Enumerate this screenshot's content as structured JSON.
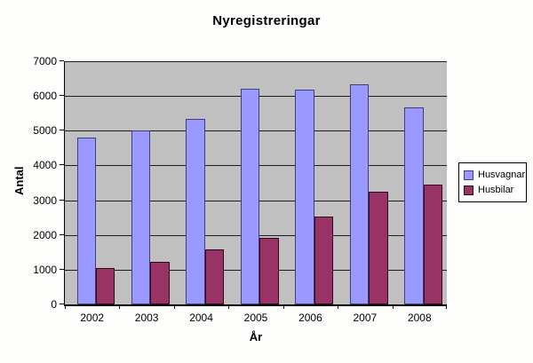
{
  "chart_data": {
    "type": "bar",
    "title": "Nyregistreringar",
    "xlabel": "År",
    "ylabel": "Antal",
    "categories": [
      "2002",
      "2003",
      "2004",
      "2005",
      "2006",
      "2007",
      "2008"
    ],
    "series": [
      {
        "name": "Husvagnar",
        "color": "#9999ff",
        "border_color": "#3f3f75",
        "values": [
          4800,
          5020,
          5350,
          6220,
          6180,
          6330,
          5670
        ]
      },
      {
        "name": "Husbilar",
        "color": "#993366",
        "border_color": "#2b0a1a",
        "values": [
          1050,
          1220,
          1590,
          1910,
          2540,
          3240,
          3450
        ]
      }
    ],
    "ylim": [
      0,
      7000
    ],
    "ytick_step": 1000,
    "yticks": [
      "0",
      "1000",
      "2000",
      "3000",
      "4000",
      "5000",
      "6000",
      "7000"
    ],
    "grid": true,
    "legend_position": "right",
    "plot_background": "#c0c0c0",
    "gridline_color": "#1c1c1c",
    "axis_color": "#000000"
  }
}
